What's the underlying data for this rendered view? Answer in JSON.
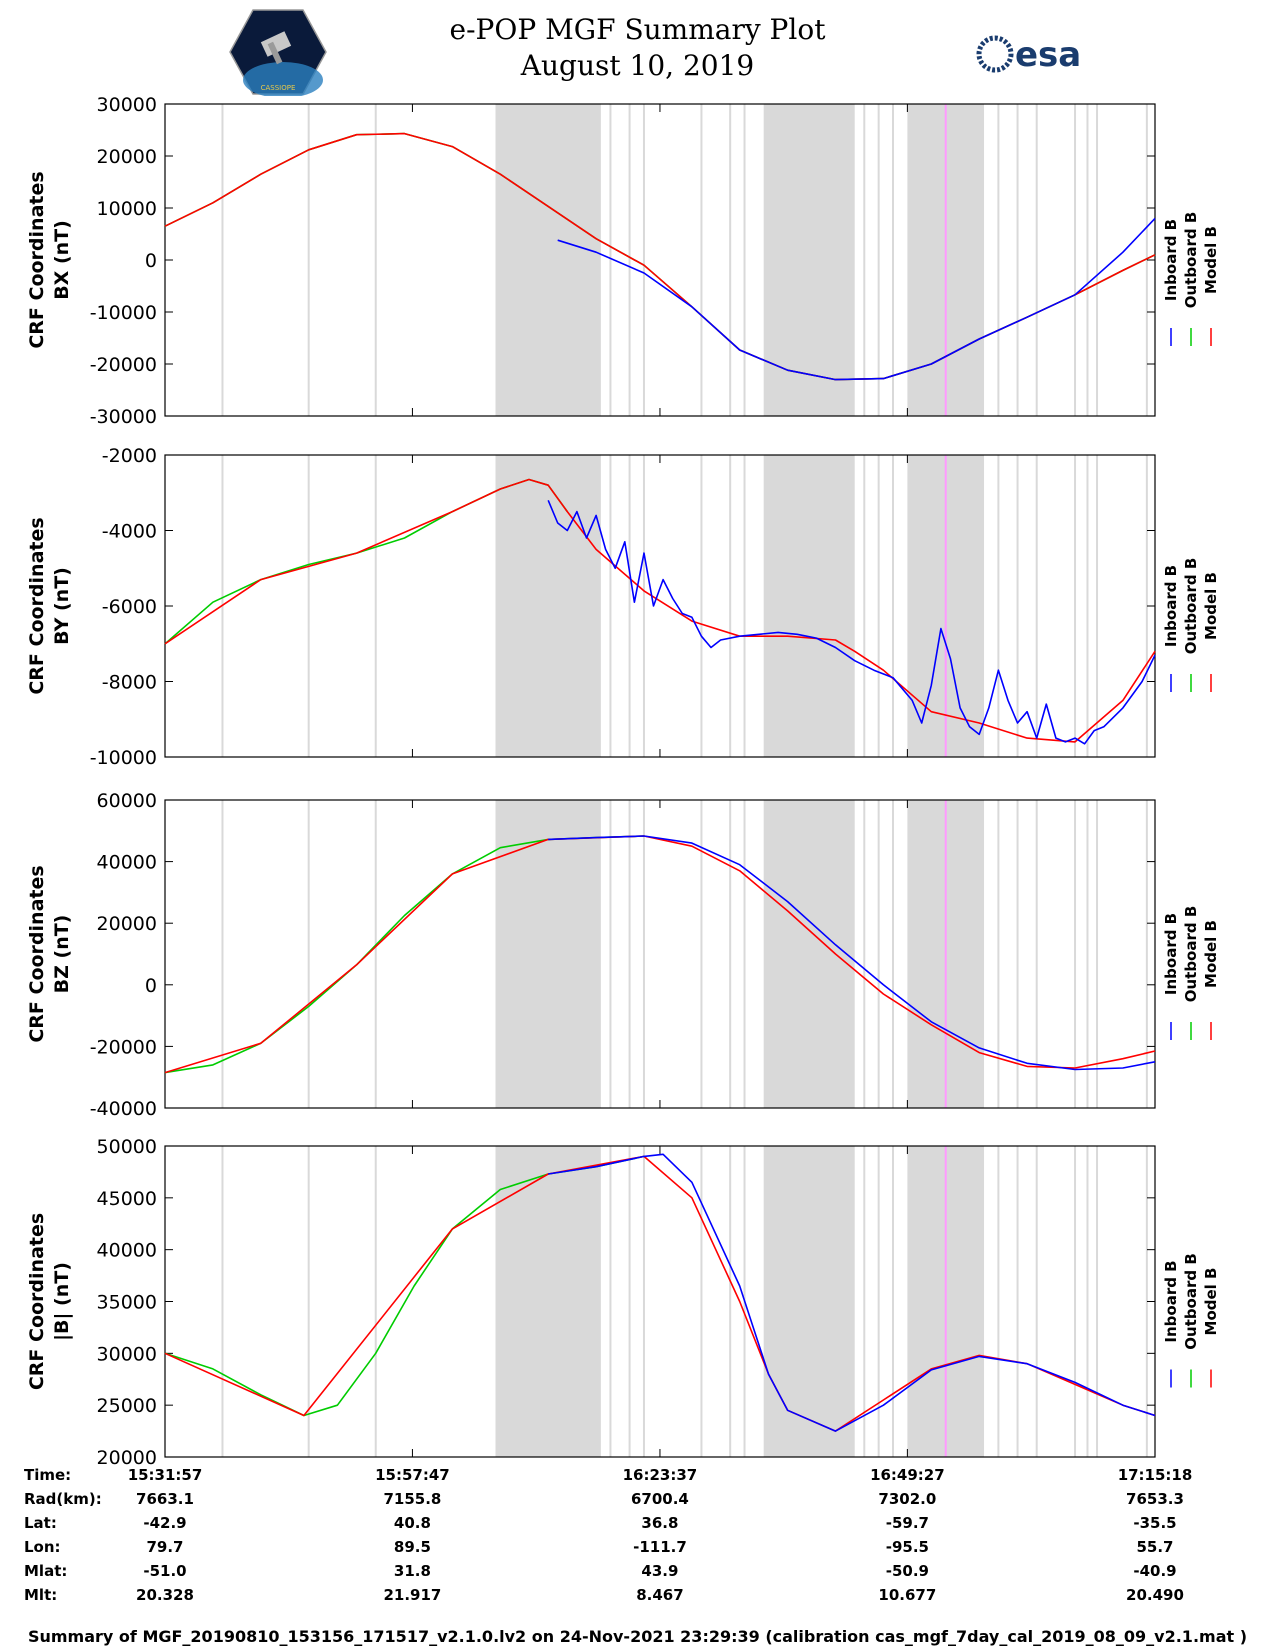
{
  "header": {
    "title_line1": "e-POP MGF Summary Plot",
    "title_line2": "August 10, 2019",
    "left_logo_text": "CASSIOPE",
    "right_logo_text": "esa"
  },
  "colors": {
    "inboard": "#0000ff",
    "outboard": "#00cc00",
    "model": "#ff0000",
    "shade": "#d9d9d9",
    "marker": "#ff99ff"
  },
  "legend": [
    "Inboard B",
    "Outboard B",
    "Model B"
  ],
  "chart_data": [
    {
      "type": "line",
      "ylabel_line1": "CRF Coordinates",
      "ylabel_line2": "BX (nT)",
      "ylim": [
        -30000,
        30000
      ],
      "yticks": [
        -30000,
        -20000,
        -10000,
        0,
        10000,
        20000,
        30000
      ],
      "xlim_min": [
        0,
        103.35
      ],
      "xticks_min": [
        0,
        25.83,
        51.67,
        77.5,
        103.35
      ],
      "series": [
        {
          "name": "Outboard B",
          "color": "#00cc00",
          "x": [
            0,
            5,
            10,
            15,
            20,
            25,
            30,
            35,
            40,
            45,
            50,
            55,
            60,
            65,
            70,
            75,
            80,
            85,
            90,
            95,
            100,
            103.35
          ],
          "values": [
            6500,
            11000,
            16500,
            21200,
            24100,
            24300,
            21800,
            16500,
            10300,
            4100,
            -1000,
            -9000,
            -17300,
            -21200,
            -23000,
            -22800,
            -20000,
            -15200,
            -11000,
            -6700,
            -2000,
            1000
          ]
        },
        {
          "name": "Model B",
          "color": "#ff0000",
          "x": [
            0,
            5,
            10,
            15,
            20,
            25,
            30,
            35,
            40,
            45,
            50,
            55,
            60,
            65,
            70,
            75,
            80,
            85,
            90,
            95,
            100,
            103.35
          ],
          "values": [
            6500,
            11000,
            16500,
            21200,
            24100,
            24300,
            21800,
            16500,
            10300,
            4100,
            -1000,
            -9000,
            -17300,
            -21200,
            -23000,
            -22800,
            -20000,
            -15200,
            -11000,
            -6700,
            -2000,
            1000
          ]
        },
        {
          "name": "Inboard B",
          "color": "#0000ff",
          "x": [
            41,
            45,
            50,
            55,
            60,
            65,
            70,
            75,
            80,
            85,
            90,
            95,
            100,
            103.35
          ],
          "values": [
            3800,
            1500,
            -2500,
            -9000,
            -17300,
            -21200,
            -23000,
            -22800,
            -20000,
            -15200,
            -11000,
            -6700,
            1500,
            8000
          ]
        }
      ]
    },
    {
      "type": "line",
      "ylabel_line1": "CRF Coordinates",
      "ylabel_line2": "BY (nT)",
      "ylim": [
        -10000,
        -2000
      ],
      "yticks": [
        -10000,
        -8000,
        -6000,
        -4000,
        -2000
      ],
      "xlim_min": [
        0,
        103.35
      ],
      "xticks_min": [
        0,
        25.83,
        51.67,
        77.5,
        103.35
      ],
      "series": [
        {
          "name": "Outboard B",
          "color": "#00cc00",
          "x": [
            0,
            5,
            10,
            15,
            20,
            25,
            30,
            35,
            38,
            40,
            42
          ],
          "values": [
            -7000,
            -5900,
            -5300,
            -4900,
            -4600,
            -4200,
            -3500,
            -2900,
            -2650,
            -2800,
            -3500
          ]
        },
        {
          "name": "Model B",
          "color": "#ff0000",
          "x": [
            0,
            10,
            20,
            30,
            35,
            38,
            40,
            42,
            45,
            50,
            55,
            60,
            65,
            70,
            72,
            75,
            80,
            85,
            90,
            95,
            100,
            103.35
          ],
          "values": [
            -7000,
            -5300,
            -4600,
            -3500,
            -2900,
            -2650,
            -2800,
            -3500,
            -4500,
            -5600,
            -6400,
            -6800,
            -6800,
            -6900,
            -7200,
            -7700,
            -8800,
            -9100,
            -9500,
            -9600,
            -8500,
            -7200
          ]
        },
        {
          "name": "Inboard B",
          "color": "#0000ff",
          "x": [
            40,
            41,
            42,
            43,
            44,
            45,
            46,
            47,
            48,
            49,
            50,
            51,
            52,
            53,
            54,
            55,
            56,
            57,
            58,
            60,
            62,
            64,
            66,
            68,
            70,
            72,
            74,
            76,
            78,
            79,
            80,
            81,
            82,
            83,
            84,
            85,
            86,
            87,
            88,
            89,
            90,
            91,
            92,
            93,
            94,
            95,
            96,
            97,
            98,
            100,
            102,
            103.35
          ],
          "values": [
            -3200,
            -3800,
            -4000,
            -3500,
            -4200,
            -3600,
            -4500,
            -5000,
            -4300,
            -5900,
            -4600,
            -6000,
            -5300,
            -5800,
            -6200,
            -6300,
            -6800,
            -7100,
            -6900,
            -6800,
            -6750,
            -6700,
            -6750,
            -6850,
            -7100,
            -7450,
            -7700,
            -7900,
            -8500,
            -9100,
            -8100,
            -6600,
            -7400,
            -8700,
            -9200,
            -9400,
            -8700,
            -7700,
            -8500,
            -9100,
            -8800,
            -9500,
            -8600,
            -9500,
            -9600,
            -9500,
            -9650,
            -9300,
            -9200,
            -8700,
            -8000,
            -7300
          ]
        }
      ]
    },
    {
      "type": "line",
      "ylabel_line1": "CRF Coordinates",
      "ylabel_line2": "BZ (nT)",
      "ylim": [
        -40000,
        60000
      ],
      "yticks": [
        -40000,
        -20000,
        0,
        20000,
        40000,
        60000
      ],
      "xlim_min": [
        0,
        103.35
      ],
      "xticks_min": [
        0,
        25.83,
        51.67,
        77.5,
        103.35
      ],
      "series": [
        {
          "name": "Outboard B",
          "color": "#00cc00",
          "x": [
            0,
            5,
            10,
            15,
            20,
            25,
            30,
            35,
            40,
            45,
            50
          ],
          "values": [
            -28500,
            -26000,
            -19000,
            -7000,
            6500,
            22500,
            36000,
            44500,
            47200,
            47800,
            48300
          ]
        },
        {
          "name": "Model B",
          "color": "#ff0000",
          "x": [
            0,
            10,
            20,
            30,
            40,
            50,
            55,
            60,
            65,
            70,
            75,
            80,
            85,
            90,
            95,
            100,
            103.35
          ],
          "values": [
            -28500,
            -19000,
            6500,
            36000,
            47200,
            48300,
            45000,
            37000,
            24000,
            10000,
            -3000,
            -13000,
            -22000,
            -26500,
            -27000,
            -24000,
            -21500
          ]
        },
        {
          "name": "Inboard B",
          "color": "#0000ff",
          "x": [
            40,
            45,
            50,
            55,
            60,
            65,
            70,
            75,
            80,
            85,
            90,
            95,
            100,
            103.35
          ],
          "values": [
            47200,
            47800,
            48300,
            46000,
            39000,
            27000,
            13000,
            0,
            -12000,
            -20500,
            -25500,
            -27500,
            -27000,
            -25000
          ]
        }
      ]
    },
    {
      "type": "line",
      "ylabel_line1": "CRF Coordinates",
      "ylabel_line2": "|B| (nT)",
      "ylim": [
        20000,
        50000
      ],
      "yticks": [
        20000,
        25000,
        30000,
        35000,
        40000,
        45000,
        50000
      ],
      "xlim_min": [
        0,
        103.35
      ],
      "xticks_min": [
        0,
        25.83,
        51.67,
        77.5,
        103.35
      ],
      "series": [
        {
          "name": "Outboard B",
          "color": "#00cc00",
          "x": [
            0,
            5,
            10,
            14.5,
            18,
            22,
            26,
            30,
            35,
            40,
            45,
            50
          ],
          "values": [
            30000,
            28500,
            26000,
            24000,
            25000,
            30000,
            36500,
            42000,
            45800,
            47300,
            48000,
            49000
          ]
        },
        {
          "name": "Model B",
          "color": "#ff0000",
          "x": [
            0,
            14.5,
            30,
            40,
            50,
            55,
            60,
            63,
            65,
            70,
            75,
            80,
            85,
            90,
            95,
            100,
            103.35
          ],
          "values": [
            30000,
            24000,
            42000,
            47300,
            49000,
            45000,
            35000,
            28000,
            24500,
            22500,
            25500,
            28500,
            29800,
            29000,
            27000,
            25000,
            24000
          ]
        },
        {
          "name": "Inboard B",
          "color": "#0000ff",
          "x": [
            40,
            45,
            50,
            52,
            55,
            60,
            63,
            65,
            70,
            75,
            80,
            85,
            90,
            95,
            100,
            103.35
          ],
          "values": [
            47300,
            48000,
            49000,
            49200,
            46500,
            36500,
            28000,
            24500,
            22500,
            25000,
            28400,
            29700,
            29000,
            27200,
            25000,
            24000
          ]
        }
      ]
    }
  ],
  "shading": {
    "blocks_min": [
      [
        34.5,
        45.5
      ],
      [
        62.5,
        72
      ],
      [
        77.5,
        85.5
      ]
    ],
    "lines_min": [
      6,
      15,
      22,
      46.5,
      48.5,
      50,
      56,
      59,
      60.5,
      73,
      74.5,
      76,
      87,
      89,
      91,
      95,
      96.3,
      97.3,
      102.5
    ],
    "marker_min": 81.5
  },
  "stats": {
    "rows": [
      {
        "label": "Time:",
        "values": [
          "15:31:57",
          "15:57:47",
          "16:23:37",
          "16:49:27",
          "17:15:18"
        ]
      },
      {
        "label": "Rad(km):",
        "values": [
          "7663.1",
          "7155.8",
          "6700.4",
          "7302.0",
          "7653.3"
        ]
      },
      {
        "label": "Lat:",
        "values": [
          "-42.9",
          "40.8",
          "36.8",
          "-59.7",
          "-35.5"
        ]
      },
      {
        "label": "Lon:",
        "values": [
          "79.7",
          "89.5",
          "-111.7",
          "-95.5",
          "55.7"
        ]
      },
      {
        "label": "Mlat:",
        "values": [
          "-51.0",
          "31.8",
          "43.9",
          "-50.9",
          "-40.9"
        ]
      },
      {
        "label": "Mlt:",
        "values": [
          "20.328",
          "21.917",
          "8.467",
          "10.677",
          "20.490"
        ]
      }
    ]
  },
  "footer": "Summary of MGF_20190810_153156_171517_v2.1.0.lv2 on 24-Nov-2021 23:29:39 (calibration cas_mgf_7day_cal_2019_08_09_v2.1.mat )"
}
